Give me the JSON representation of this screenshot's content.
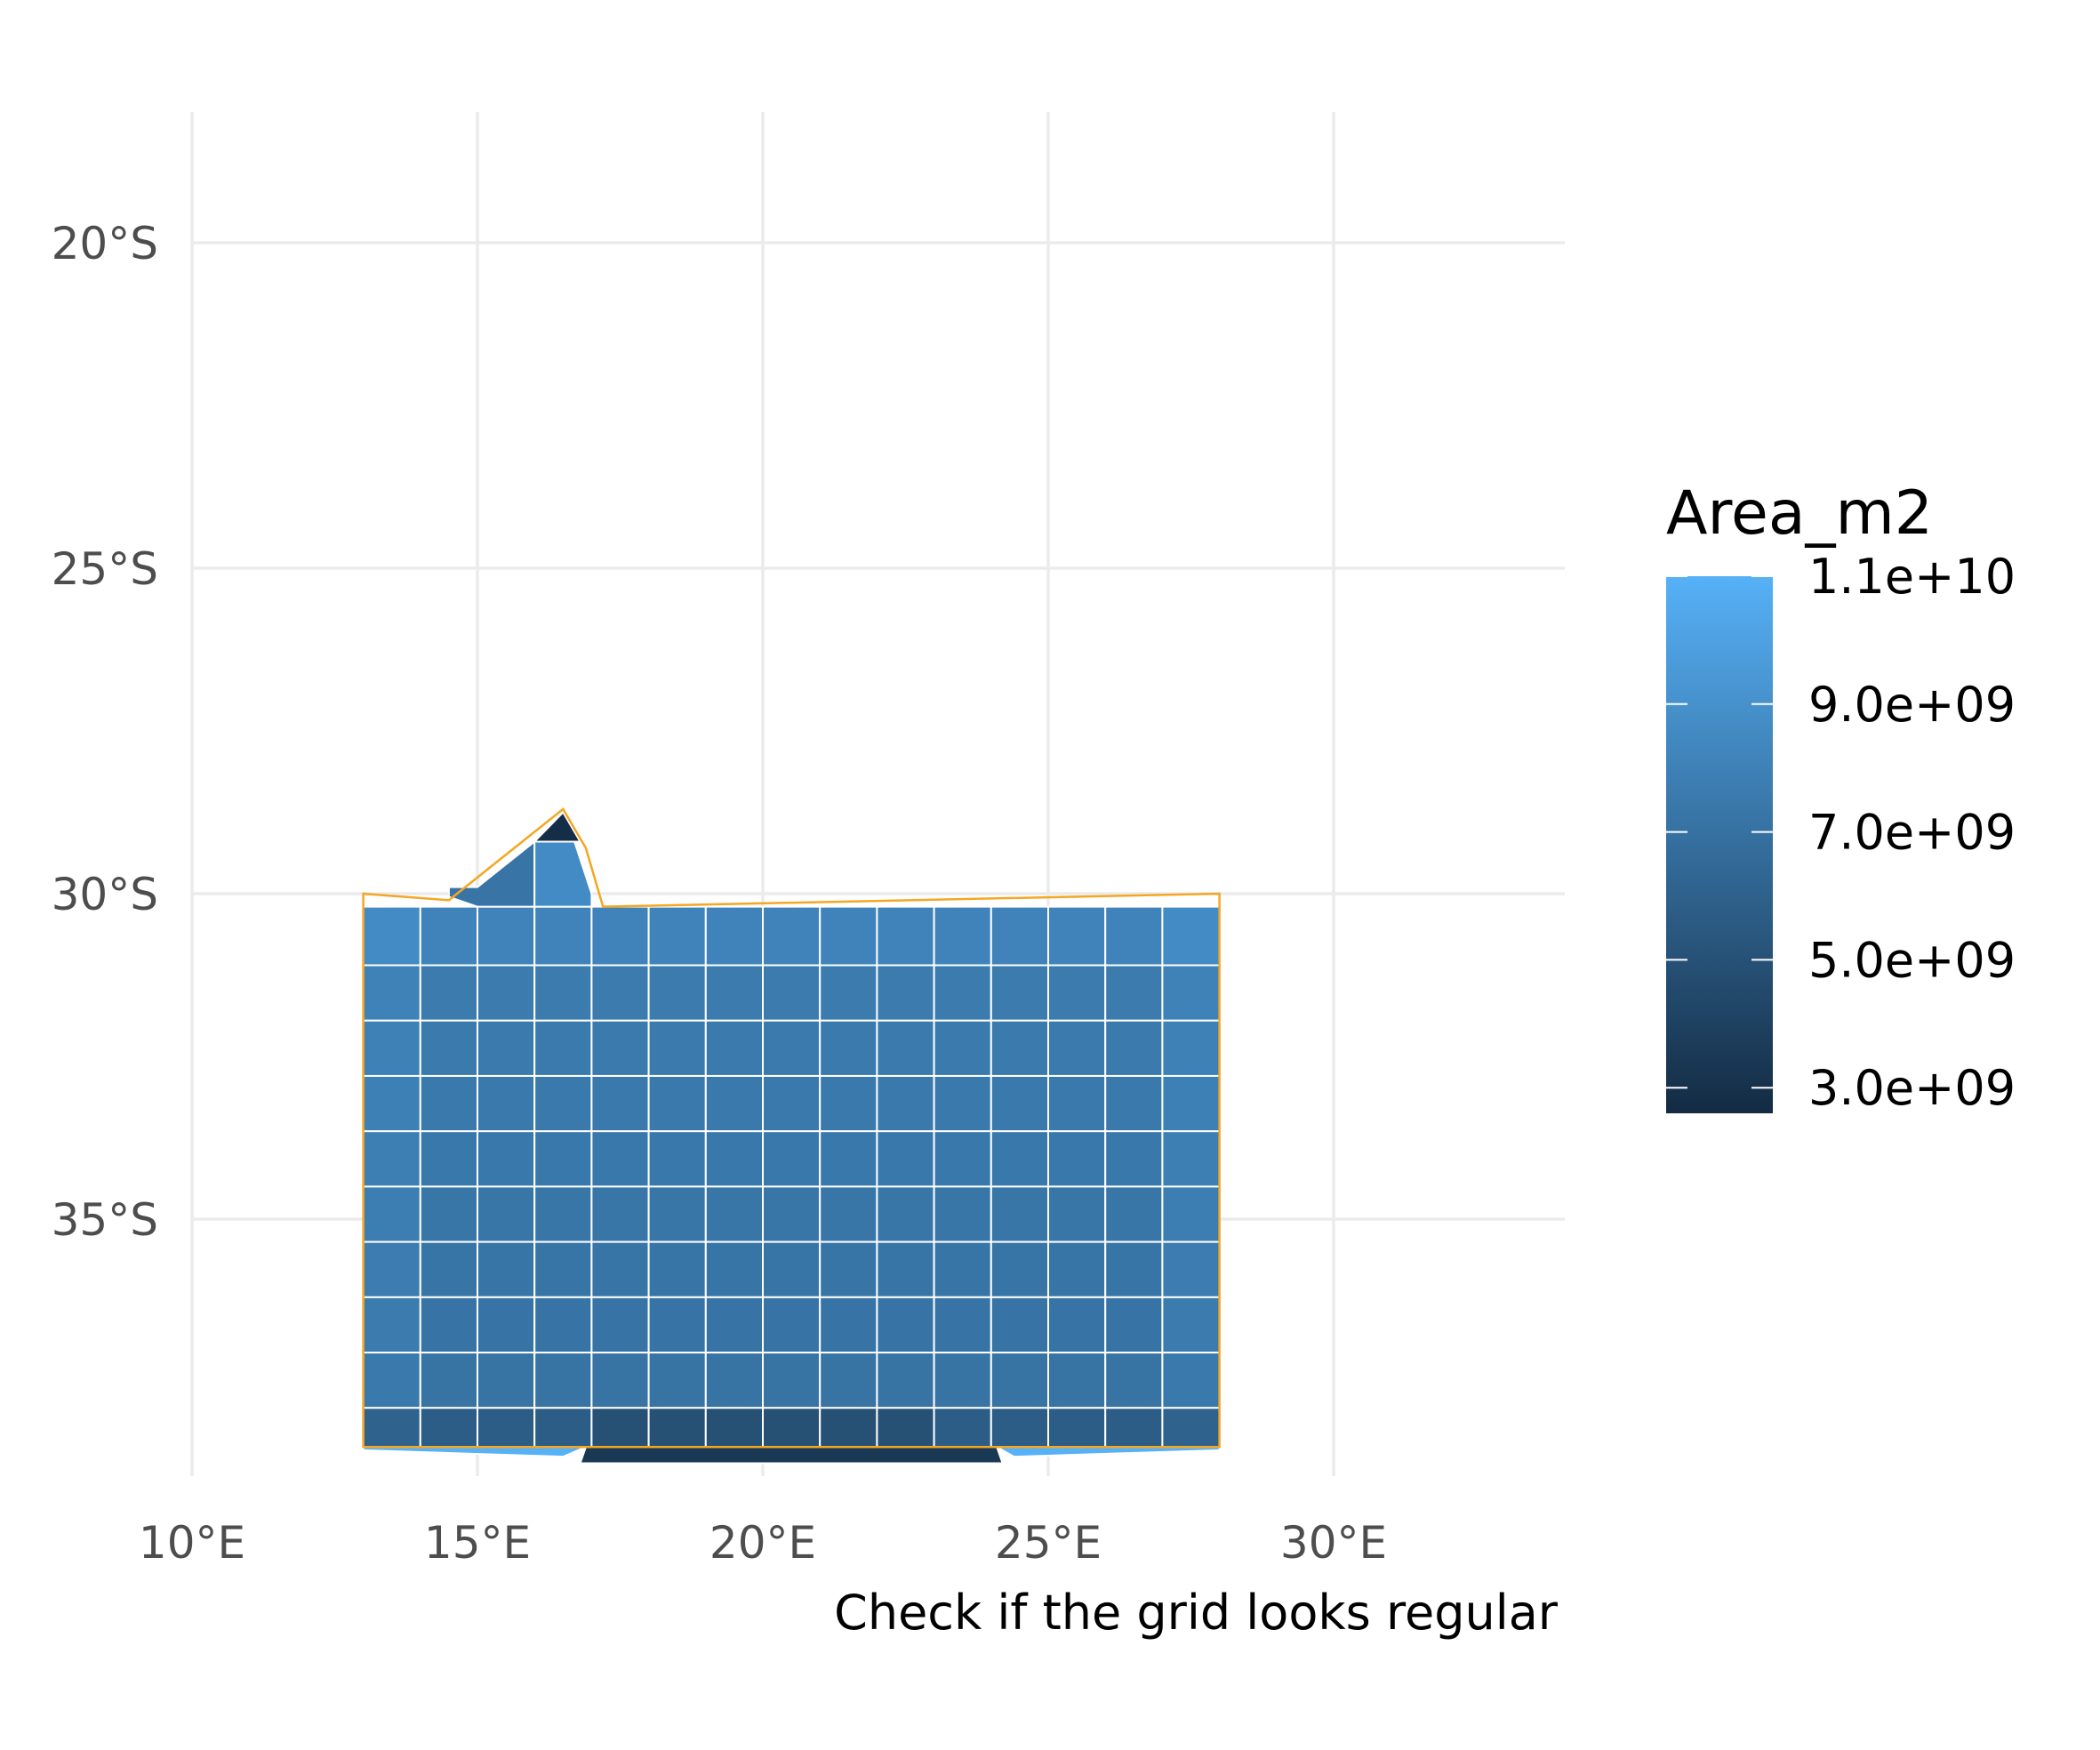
{
  "chart_data": {
    "type": "map",
    "title": "",
    "caption": "Check if the grid looks regular",
    "x_axis": {
      "range": [
        10,
        34
      ],
      "ticks": [
        {
          "value": 10,
          "label": "10°E"
        },
        {
          "value": 15,
          "label": "15°E"
        },
        {
          "value": 20,
          "label": "20°E"
        },
        {
          "value": 25,
          "label": "25°E"
        },
        {
          "value": 30,
          "label": "30°E"
        }
      ]
    },
    "y_axis": {
      "range": [
        -38.9,
        -18.0
      ],
      "ticks": [
        {
          "value": -20,
          "label": "20°S"
        },
        {
          "value": -25,
          "label": "25°S"
        },
        {
          "value": -30,
          "label": "30°S"
        },
        {
          "value": -35,
          "label": "35°S"
        }
      ]
    },
    "outline": {
      "color": "#f5a623",
      "lon_range": [
        13.0,
        28.0
      ],
      "lat_range": [
        -38.5,
        -28.7
      ]
    },
    "grid_cells": {
      "lon_edges": [
        13,
        14,
        15,
        16,
        17,
        18,
        19,
        20,
        21,
        22,
        23,
        24,
        25,
        26,
        27,
        28
      ],
      "lat_edges": [
        -30.2,
        -31.1,
        -31.95,
        -32.8,
        -33.65,
        -34.5,
        -35.35,
        -36.2,
        -37.05,
        -37.9,
        -38.5
      ],
      "stroke_color": "#ffffff"
    },
    "legend": {
      "title": "Area_m2",
      "min": 2600000000.0,
      "max": 11000000000.0,
      "labels": [
        "1.1e+10",
        "9.0e+09",
        "7.0e+09",
        "5.0e+09",
        "3.0e+09"
      ],
      "label_values": [
        11000000000.0,
        9000000000.0,
        7000000000.0,
        5000000000.0,
        3000000000.0
      ],
      "color_low": "#132b43",
      "color_high": "#56b1f7"
    }
  }
}
